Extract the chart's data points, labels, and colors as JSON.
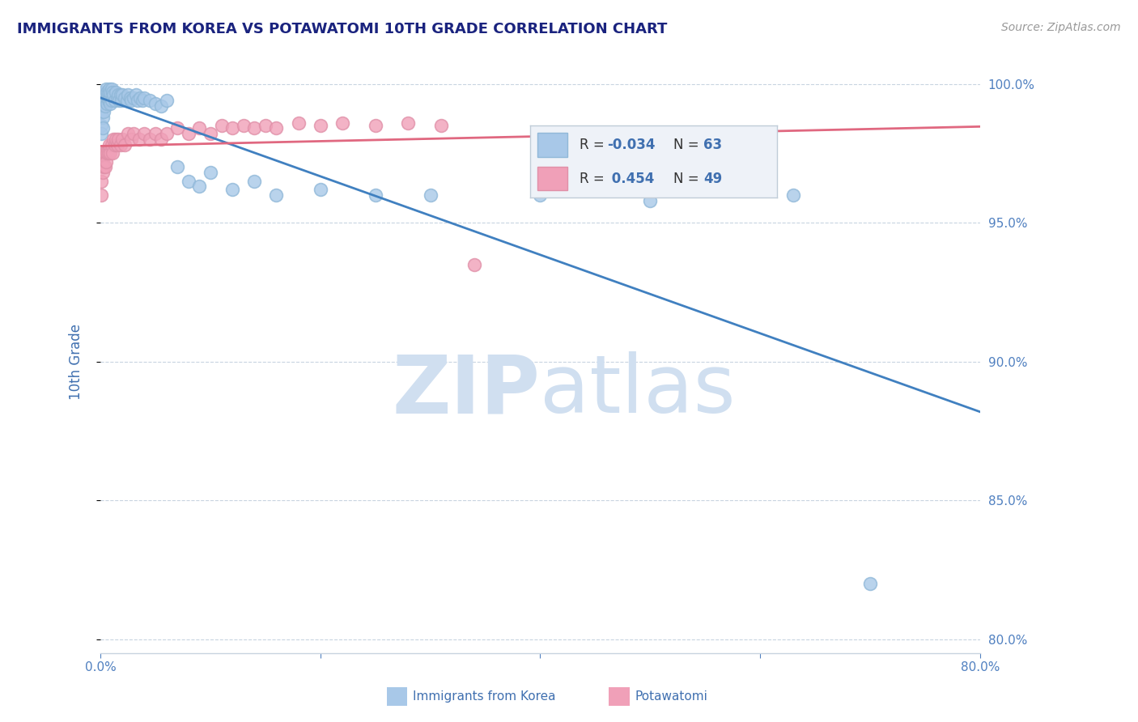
{
  "title": "IMMIGRANTS FROM KOREA VS POTAWATOMI 10TH GRADE CORRELATION CHART",
  "source_text": "Source: ZipAtlas.com",
  "ylabel": "10th Grade",
  "xlim": [
    0.0,
    0.8
  ],
  "ylim": [
    0.795,
    1.005
  ],
  "xtick_positions": [
    0.0,
    0.2,
    0.4,
    0.6,
    0.8
  ],
  "xtick_labels": [
    "0.0%",
    "",
    "",
    "",
    "80.0%"
  ],
  "ytick_labels_right": [
    "80.0%",
    "85.0%",
    "90.0%",
    "95.0%",
    "100.0%"
  ],
  "yticks_right": [
    0.8,
    0.85,
    0.9,
    0.95,
    1.0
  ],
  "R_korea": -0.034,
  "N_korea": 63,
  "R_potawatomi": 0.454,
  "N_potawatomi": 49,
  "korea_color": "#a8c8e8",
  "potawatomi_color": "#f0a0b8",
  "korea_edge_color": "#90b8d8",
  "potawatomi_edge_color": "#e090a8",
  "korea_line_color": "#4080c0",
  "potawatomi_line_color": "#e06880",
  "watermark_color": "#d0dff0",
  "title_color": "#1a237e",
  "axis_label_color": "#4070b0",
  "tick_color": "#5080c0",
  "grid_color": "#c8d4e0",
  "background_color": "#ffffff",
  "legend_bg": "#eef2f8",
  "legend_border": "#c0ccd8",
  "korea_x": [
    0.001,
    0.001,
    0.001,
    0.002,
    0.002,
    0.002,
    0.002,
    0.003,
    0.003,
    0.003,
    0.004,
    0.004,
    0.005,
    0.005,
    0.006,
    0.006,
    0.007,
    0.007,
    0.008,
    0.008,
    0.009,
    0.009,
    0.01,
    0.01,
    0.011,
    0.012,
    0.013,
    0.014,
    0.015,
    0.016,
    0.017,
    0.018,
    0.019,
    0.02,
    0.022,
    0.024,
    0.025,
    0.027,
    0.028,
    0.03,
    0.032,
    0.034,
    0.036,
    0.038,
    0.04,
    0.045,
    0.05,
    0.055,
    0.06,
    0.07,
    0.08,
    0.09,
    0.1,
    0.12,
    0.14,
    0.16,
    0.2,
    0.25,
    0.3,
    0.4,
    0.5,
    0.63,
    0.7
  ],
  "korea_y": [
    0.99,
    0.985,
    0.982,
    0.996,
    0.993,
    0.988,
    0.984,
    0.997,
    0.994,
    0.99,
    0.996,
    0.992,
    0.998,
    0.994,
    0.997,
    0.993,
    0.997,
    0.994,
    0.998,
    0.994,
    0.997,
    0.993,
    0.998,
    0.994,
    0.997,
    0.996,
    0.994,
    0.997,
    0.995,
    0.996,
    0.994,
    0.996,
    0.994,
    0.996,
    0.995,
    0.994,
    0.996,
    0.995,
    0.994,
    0.995,
    0.996,
    0.994,
    0.995,
    0.994,
    0.995,
    0.994,
    0.993,
    0.992,
    0.994,
    0.97,
    0.965,
    0.963,
    0.968,
    0.962,
    0.965,
    0.96,
    0.962,
    0.96,
    0.96,
    0.96,
    0.958,
    0.96,
    0.82
  ],
  "potawatomi_x": [
    0.001,
    0.001,
    0.002,
    0.002,
    0.003,
    0.003,
    0.004,
    0.004,
    0.005,
    0.006,
    0.007,
    0.008,
    0.009,
    0.01,
    0.011,
    0.012,
    0.013,
    0.014,
    0.015,
    0.016,
    0.018,
    0.02,
    0.022,
    0.025,
    0.028,
    0.03,
    0.035,
    0.04,
    0.045,
    0.05,
    0.055,
    0.06,
    0.07,
    0.08,
    0.09,
    0.1,
    0.11,
    0.12,
    0.13,
    0.14,
    0.15,
    0.16,
    0.18,
    0.2,
    0.22,
    0.25,
    0.28,
    0.31,
    0.34
  ],
  "potawatomi_y": [
    0.965,
    0.96,
    0.972,
    0.968,
    0.975,
    0.97,
    0.975,
    0.97,
    0.972,
    0.975,
    0.975,
    0.978,
    0.975,
    0.978,
    0.975,
    0.98,
    0.978,
    0.98,
    0.978,
    0.98,
    0.978,
    0.98,
    0.978,
    0.982,
    0.98,
    0.982,
    0.98,
    0.982,
    0.98,
    0.982,
    0.98,
    0.982,
    0.984,
    0.982,
    0.984,
    0.982,
    0.985,
    0.984,
    0.985,
    0.984,
    0.985,
    0.984,
    0.986,
    0.985,
    0.986,
    0.985,
    0.986,
    0.985,
    0.935
  ]
}
